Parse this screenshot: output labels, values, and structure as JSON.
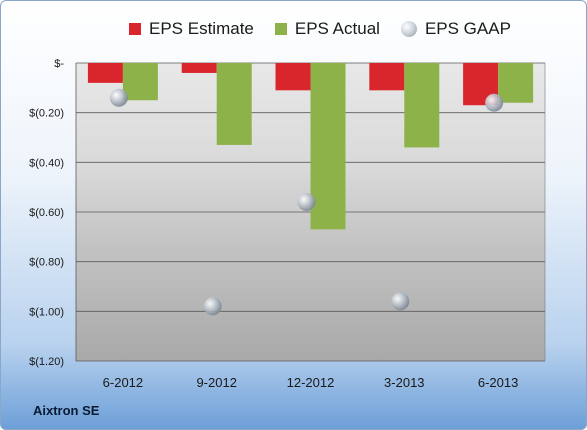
{
  "chart_data": {
    "type": "bar",
    "categories": [
      "6-2012",
      "9-2012",
      "12-2012",
      "3-2013",
      "6-2013"
    ],
    "series": [
      {
        "name": "EPS Estimate",
        "kind": "bar",
        "color": "#d9262c",
        "values": [
          -0.08,
          -0.04,
          -0.11,
          -0.11,
          -0.17
        ]
      },
      {
        "name": "EPS Actual",
        "kind": "bar",
        "color": "#8db24a",
        "values": [
          -0.15,
          -0.33,
          -0.67,
          -0.34,
          -0.16
        ]
      },
      {
        "name": "EPS GAAP",
        "kind": "marker",
        "color": "#b8c0c8",
        "values": [
          -0.14,
          -0.98,
          -0.56,
          -0.96,
          -0.16
        ]
      }
    ],
    "yticks": [
      {
        "value": 0,
        "label": "$-"
      },
      {
        "value": -0.2,
        "label": "$(0.20)"
      },
      {
        "value": -0.4,
        "label": "$(0.40)"
      },
      {
        "value": -0.6,
        "label": "$(0.60)"
      },
      {
        "value": -0.8,
        "label": "$(0.80)"
      },
      {
        "value": -1.0,
        "label": "$(1.00)"
      },
      {
        "value": -1.2,
        "label": "$(1.20)"
      }
    ],
    "ylim": [
      -1.2,
      0
    ],
    "grid": true,
    "legend_position": "top"
  },
  "legend": {
    "estimate": "EPS Estimate",
    "actual": "EPS Actual",
    "gaap": "EPS GAAP"
  },
  "footer": {
    "company": "Aixtron SE"
  }
}
